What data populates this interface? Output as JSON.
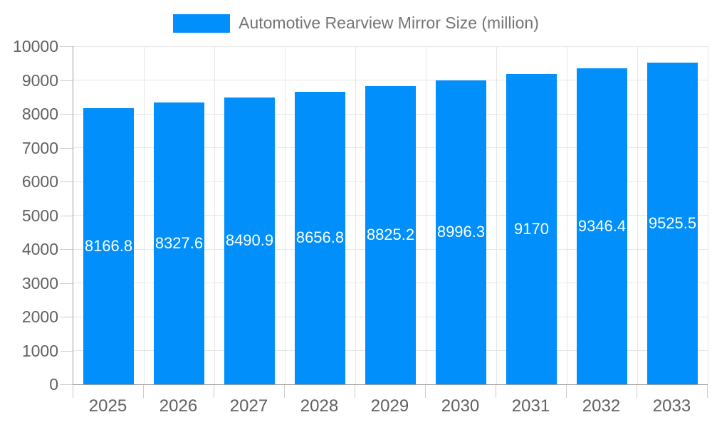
{
  "legend": {
    "label": "Automotive Rearview Mirror Size (million)"
  },
  "colors": {
    "accent": "#008FFB",
    "bar_label": "#FFFFFF",
    "axis_line": "#9E9E9E",
    "grid_line": "#E6E6E6",
    "tick": "#CCCCCC",
    "axis_text": "#616161",
    "legend_text": "#757575",
    "background": "#FFFFFF"
  },
  "chart_data": {
    "type": "bar",
    "title": "Automotive Rearview Mirror Size (million)",
    "xlabel": "",
    "ylabel": "",
    "categories": [
      "2025",
      "2026",
      "2027",
      "2028",
      "2029",
      "2030",
      "2031",
      "2032",
      "2033"
    ],
    "series": [
      {
        "name": "Automotive Rearview Mirror Size (million)",
        "values": [
          8166.8,
          8327.6,
          8490.9,
          8656.8,
          8825.2,
          8996.3,
          9170,
          9346.4,
          9525.5
        ]
      }
    ],
    "value_labels": [
      "8166.8",
      "8327.6",
      "8490.9",
      "8656.8",
      "8825.2",
      "8996.3",
      "9170",
      "9346.4",
      "9525.5"
    ],
    "value_label_position": "inside-center",
    "ylim": [
      0,
      10000
    ],
    "y_tick_step": 1000,
    "y_tick_labels": [
      "0",
      "1000",
      "2000",
      "3000",
      "4000",
      "5000",
      "6000",
      "7000",
      "8000",
      "9000",
      "10000"
    ],
    "grid": true,
    "vertical_grid": true,
    "legend_position": "top-center",
    "bar_width_fraction": 0.71
  }
}
